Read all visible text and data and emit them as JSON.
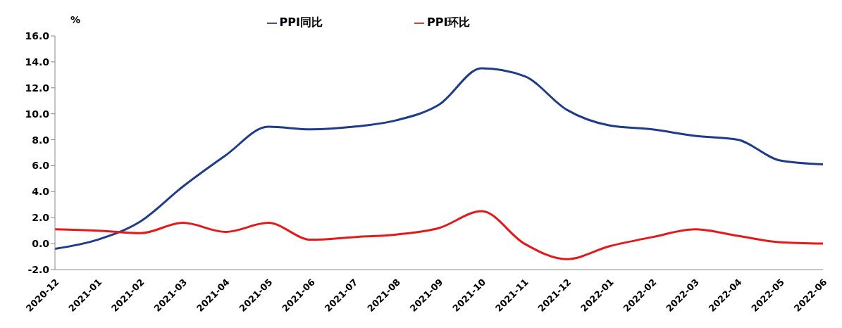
{
  "chart_data": {
    "type": "line",
    "ylabel": "%",
    "categories": [
      "2020-12",
      "2021-01",
      "2021-02",
      "2021-03",
      "2021-04",
      "2021-05",
      "2021-06",
      "2021-07",
      "2021-08",
      "2021-09",
      "2021-10",
      "2021-11",
      "2021-12",
      "2022-01",
      "2022-02",
      "2022-03",
      "2022-04",
      "2022-05",
      "2022-06"
    ],
    "series": [
      {
        "name": "PPI同比",
        "color": "#1f3c88",
        "values": [
          -0.4,
          0.3,
          1.7,
          4.4,
          6.8,
          9.0,
          8.8,
          9.0,
          9.5,
          10.7,
          13.5,
          12.9,
          10.3,
          9.1,
          8.8,
          8.3,
          8.0,
          6.4,
          6.1
        ]
      },
      {
        "name": "PPI环比",
        "color": "#e31a1c",
        "values": [
          1.1,
          1.0,
          0.8,
          1.6,
          0.9,
          1.6,
          0.3,
          0.5,
          0.7,
          1.2,
          2.5,
          0.0,
          -1.2,
          -0.2,
          0.5,
          1.1,
          0.6,
          0.1,
          0.0
        ]
      }
    ],
    "ylim": [
      -2,
      16
    ],
    "yticks": [
      {
        "value": -2,
        "label": "-2.0"
      },
      {
        "value": 0,
        "label": "0.0"
      },
      {
        "value": 2,
        "label": "2.0"
      },
      {
        "value": 4,
        "label": "4.0"
      },
      {
        "value": 6,
        "label": "6.0"
      },
      {
        "value": 8,
        "label": "8.0"
      },
      {
        "value": 10,
        "label": "10.0"
      },
      {
        "value": 12,
        "label": "12.0"
      },
      {
        "value": 14,
        "label": "14.0"
      },
      {
        "value": 16,
        "label": "16.0"
      }
    ],
    "grid": false,
    "legend": "top",
    "marker": "none",
    "line_style": "solid"
  }
}
